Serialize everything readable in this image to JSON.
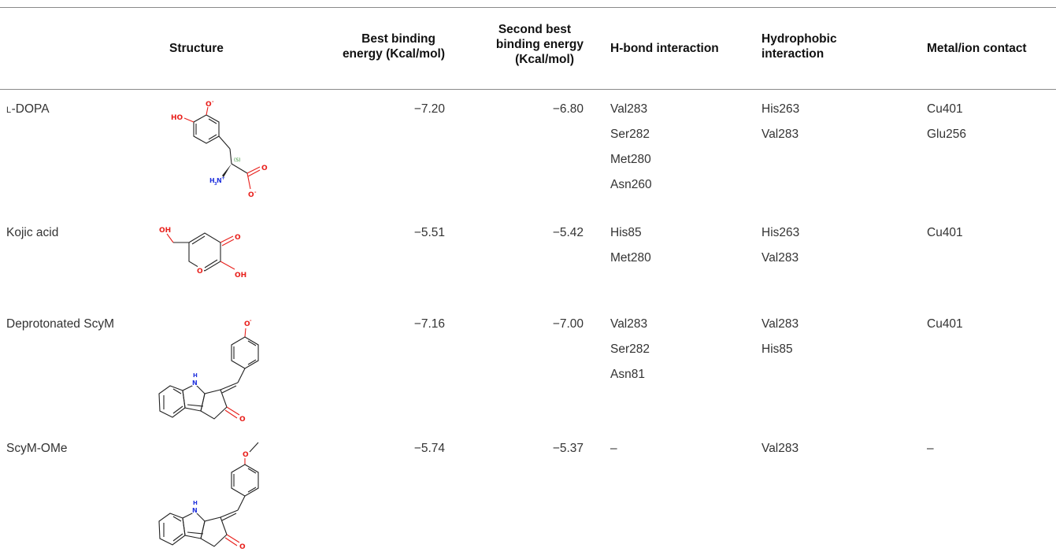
{
  "headers": {
    "structure": "Structure",
    "best_l1": "Best binding",
    "best_l2": "energy (Kcal/mol)",
    "second_l1": "Second best",
    "second_l2": "binding energy",
    "second_l3": "(Kcal/mol)",
    "hbond": "H-bond interaction",
    "hydro_l1": "Hydrophobic",
    "hydro_l2": "interaction",
    "metal": "Metal/ion contact"
  },
  "rows": [
    {
      "name_prefix": "l",
      "name": "-DOPA",
      "best": "−7.20",
      "second": "−6.80",
      "hbond": [
        "Val283",
        "Ser282",
        "Met280",
        "Asn260"
      ],
      "hydrophobic": [
        "His263",
        "Val283"
      ],
      "metal": [
        "Cu401",
        "Glu256"
      ],
      "structure_icon": "l-dopa-structure"
    },
    {
      "name": "Kojic acid",
      "best": "−5.51",
      "second": "−5.42",
      "hbond": [
        "His85",
        "Met280"
      ],
      "hydrophobic": [
        "His263",
        "Val283"
      ],
      "metal": [
        "Cu401"
      ],
      "structure_icon": "kojic-acid-structure"
    },
    {
      "name": "Deprotonated ScyM",
      "best": "−7.16",
      "second": "−7.00",
      "hbond": [
        "Val283",
        "Ser282",
        "Asn81"
      ],
      "hydrophobic": [
        "Val283",
        "His85"
      ],
      "metal": [
        "Cu401"
      ],
      "structure_icon": "deprotonated-scym-structure"
    },
    {
      "name": "ScyM-OMe",
      "best": "−5.74",
      "second": "−5.37",
      "hbond": [
        "–"
      ],
      "hydrophobic": [
        "Val283"
      ],
      "metal": [
        "–"
      ],
      "structure_icon": "scym-ome-structure"
    }
  ],
  "atom_labels": {
    "oxygen": "O",
    "hydroxyl": "HO",
    "hydroxyl_r": "OH",
    "amine": "H",
    "nitrogen_h": "H",
    "nitrogen": "N",
    "stereo": "(S)",
    "minus": "-",
    "plus": "+",
    "three": "3"
  }
}
